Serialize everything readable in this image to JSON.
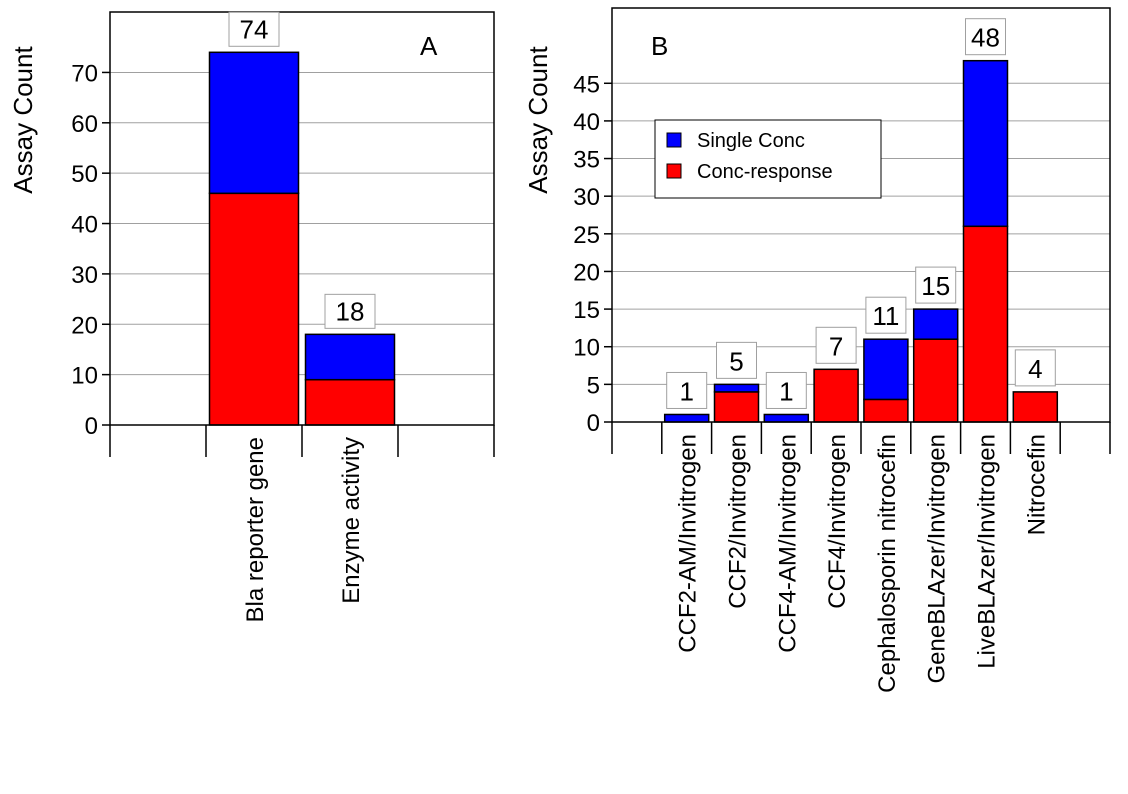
{
  "colors": {
    "single": "#0000ff",
    "conc": "#ff0000",
    "grid": "#a0a0a0",
    "axis": "#000000",
    "label_border": "#a0a0a0"
  },
  "legend": {
    "single_label": "Single Conc",
    "conc_label": "Conc-response",
    "placement": "upper-left of panel B"
  },
  "chart_data": [
    {
      "type": "bar",
      "stacked": true,
      "panel_label": "A",
      "ylabel": "Assay Count",
      "ylim": [
        0,
        82
      ],
      "yticks": [
        0,
        10,
        20,
        30,
        40,
        50,
        60,
        70
      ],
      "grid": true,
      "categories": [
        "",
        "Bla reporter gene",
        "Enzyme activity",
        ""
      ],
      "series": [
        {
          "name": "Conc-response",
          "values": [
            0,
            46,
            9,
            0
          ]
        },
        {
          "name": "Single Conc",
          "values": [
            0,
            28,
            9,
            0
          ]
        }
      ],
      "totals": [
        null,
        74,
        18,
        null
      ]
    },
    {
      "type": "bar",
      "stacked": true,
      "panel_label": "B",
      "ylabel": "Assay Count",
      "ylim": [
        0,
        55
      ],
      "yticks": [
        0,
        5,
        10,
        15,
        20,
        25,
        30,
        35,
        40,
        45
      ],
      "grid": true,
      "categories": [
        "",
        "CCF2-AM/Invitrogen",
        "CCF2/Invitrogen",
        "CCF4-AM/Invitrogen",
        "CCF4/Invitrogen",
        "Cephalosporin nitrocefin",
        "GeneBLAzer/Invitrogen",
        "LiveBLAzer/Invitrogen",
        "Nitrocefin",
        ""
      ],
      "series": [
        {
          "name": "Conc-response",
          "values": [
            0,
            0,
            4,
            0,
            7,
            3,
            11,
            26,
            4,
            0
          ]
        },
        {
          "name": "Single Conc",
          "values": [
            0,
            1,
            1,
            1,
            0,
            8,
            4,
            22,
            0,
            0
          ]
        }
      ],
      "totals": [
        null,
        1,
        5,
        1,
        7,
        11,
        15,
        48,
        4,
        null
      ]
    }
  ]
}
